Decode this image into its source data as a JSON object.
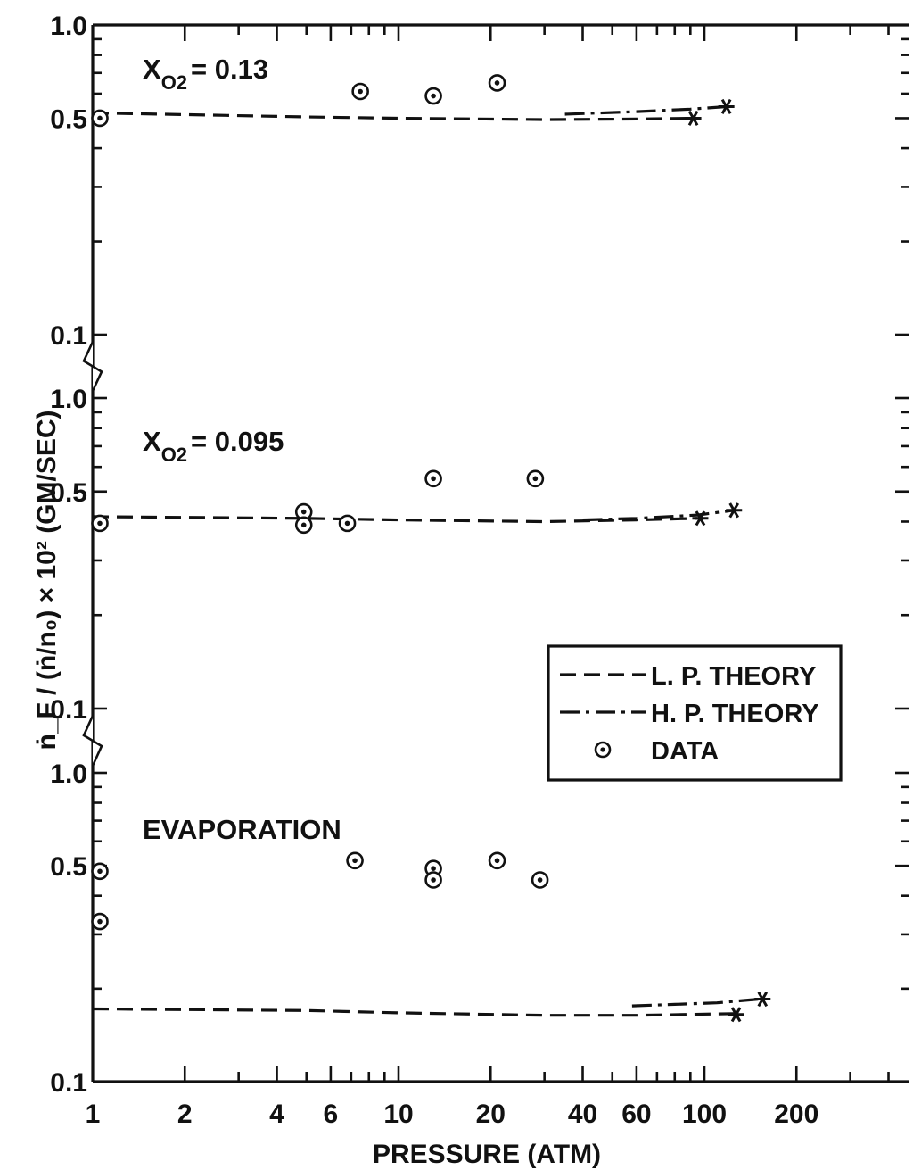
{
  "chart_data": {
    "type": "scatter",
    "xlabel": "PRESSURE (ATM)",
    "ylabel": "ṅ_F / (ṅ/n₀) × 10² (GM/SEC)",
    "x_scale": "log",
    "xlim": [
      1,
      400
    ],
    "x_ticks": [
      1,
      2,
      4,
      6,
      10,
      20,
      40,
      60,
      100,
      200
    ],
    "x_tick_labels": [
      "1",
      "2",
      "4",
      "6",
      "10",
      "20",
      "40",
      "60",
      "100",
      "200"
    ],
    "legend": {
      "placement": "center-right",
      "entries": [
        {
          "key": "lp",
          "label": "L. P. THEORY"
        },
        {
          "key": "hp",
          "label": "H. P. THEORY"
        },
        {
          "key": "data",
          "label": "DATA"
        }
      ]
    },
    "panels": [
      {
        "label_main": "X",
        "label_sub": "O2",
        "label_value": "= 0.13",
        "y_scale": "log",
        "ylim": [
          0.1,
          1.0
        ],
        "y_tick_labels": [
          "1.0",
          "0.5",
          "0.1"
        ],
        "series": [
          {
            "key": "lp",
            "x": [
              1,
              5,
              10,
              30,
              60,
              90
            ],
            "y": [
              0.52,
              0.505,
              0.5,
              0.495,
              0.497,
              0.5
            ]
          },
          {
            "key": "hp",
            "x": [
              35,
              60,
              90,
              118
            ],
            "y": [
              0.515,
              0.525,
              0.535,
              0.545
            ]
          },
          {
            "key": "data",
            "x": [
              1,
              7.5,
              13,
              21
            ],
            "y": [
              0.5,
              0.61,
              0.59,
              0.65
            ]
          }
        ],
        "endpoints": [
          {
            "x": 92,
            "y": 0.5
          },
          {
            "x": 118,
            "y": 0.545
          }
        ]
      },
      {
        "label_main": "X",
        "label_sub": "O2",
        "label_value": "= 0.095",
        "y_scale": "log",
        "ylim": [
          0.1,
          1.0
        ],
        "y_tick_labels": [
          "1.0",
          "0.5",
          "0.1"
        ],
        "series": [
          {
            "key": "lp",
            "x": [
              1,
              5,
              10,
              30,
              60,
              95
            ],
            "y": [
              0.415,
              0.41,
              0.405,
              0.4,
              0.405,
              0.41
            ]
          },
          {
            "key": "hp",
            "x": [
              40,
              60,
              95,
              125
            ],
            "y": [
              0.405,
              0.41,
              0.42,
              0.435
            ]
          },
          {
            "key": "data",
            "x": [
              1,
              4.9,
              4.9,
              6.8,
              13,
              28
            ],
            "y": [
              0.395,
              0.43,
              0.39,
              0.395,
              0.55,
              0.55
            ]
          }
        ],
        "endpoints": [
          {
            "x": 97,
            "y": 0.41
          },
          {
            "x": 125,
            "y": 0.435
          }
        ]
      },
      {
        "label_main": "EVAPORATION",
        "label_sub": "",
        "label_value": "",
        "y_scale": "log",
        "ylim": [
          0.1,
          1.0
        ],
        "y_tick_labels": [
          "1.0",
          "0.5",
          "0.1"
        ],
        "series": [
          {
            "key": "lp",
            "x": [
              1,
              5,
              10,
              30,
              60,
              125
            ],
            "y": [
              0.172,
              0.17,
              0.167,
              0.164,
              0.164,
              0.166
            ]
          },
          {
            "key": "hp",
            "x": [
              58,
              80,
              110,
              150
            ],
            "y": [
              0.176,
              0.178,
              0.18,
              0.185
            ]
          },
          {
            "key": "data",
            "x": [
              1,
              1,
              7.2,
              13,
              13,
              21,
              29
            ],
            "y": [
              0.48,
              0.33,
              0.52,
              0.49,
              0.45,
              0.52,
              0.45
            ]
          }
        ],
        "endpoints": [
          {
            "x": 127,
            "y": 0.165
          },
          {
            "x": 155,
            "y": 0.185
          }
        ]
      }
    ]
  }
}
